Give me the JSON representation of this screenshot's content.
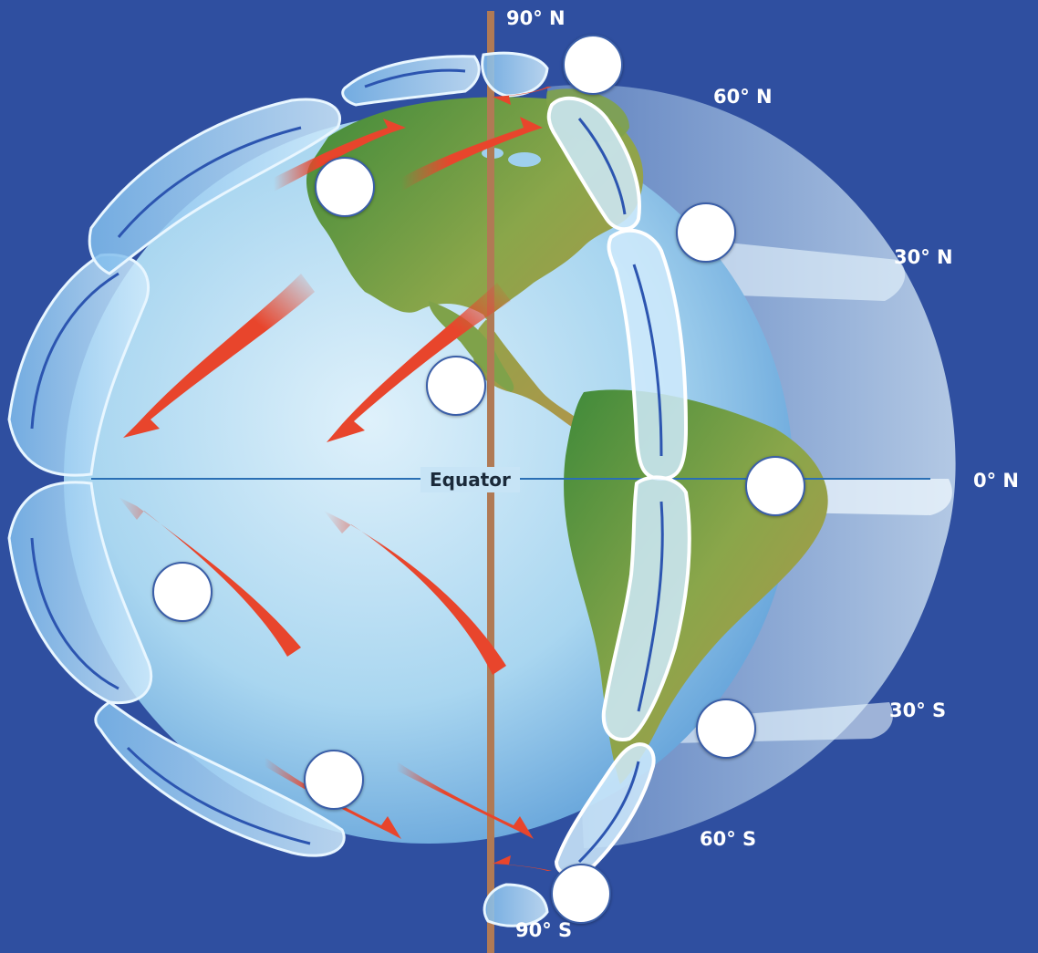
{
  "labels": {
    "north_pole": "90° N",
    "lat_60n": "60° N",
    "lat_30n": "30° N",
    "lat_0": "0° N",
    "lat_30s": "30° S",
    "lat_60s": "60° S",
    "south_pole": "90° S",
    "equator": "Equator"
  },
  "colors": {
    "background": "#2f4fa0",
    "ocean": "#9fd0ee",
    "land": "#5e9a3c",
    "wind_arrow": "#e8452c",
    "cell": "#bfe3fa",
    "circulation_line": "#2c55b0"
  },
  "blanks": [
    "blank-1",
    "blank-2",
    "blank-3",
    "blank-4",
    "blank-5",
    "blank-6",
    "blank-7",
    "blank-8",
    "blank-9"
  ]
}
